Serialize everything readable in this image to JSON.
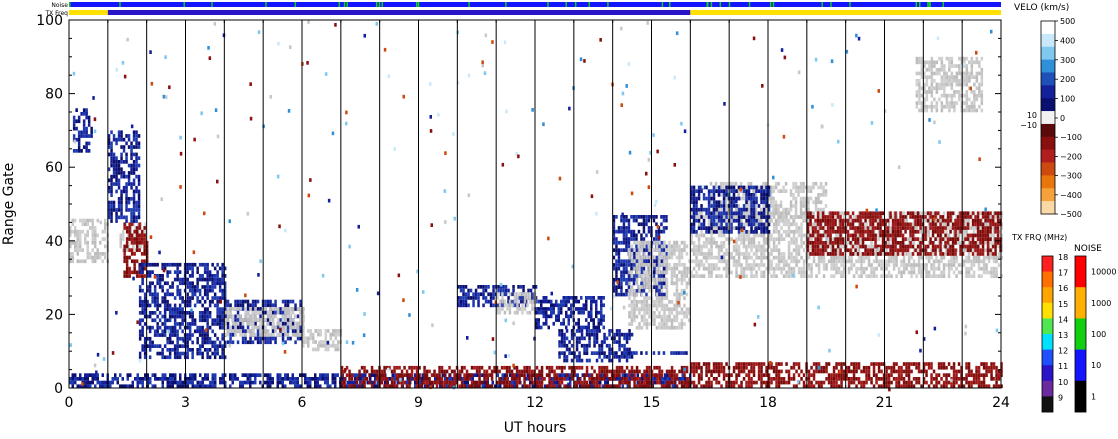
{
  "labels": {
    "noise_row": "Noise",
    "freq_row": "TX Freq",
    "x_axis": "UT hours",
    "y_axis": "Range Gate"
  },
  "velo_scale": {
    "title": "VELO (km/s)",
    "ticks": [
      "500",
      "400",
      "300",
      "200",
      "100",
      "0",
      "−100",
      "−200",
      "−300",
      "−400",
      "−500"
    ],
    "side_ticks": [
      "10",
      "−10"
    ],
    "colors": [
      "#ffffff",
      "#c9e8fb",
      "#7fc8f0",
      "#2f8fd8",
      "#1f4fb8",
      "#14209a",
      "#0b1070",
      "#f2f2f2",
      "#5a0a0a",
      "#8a0f0f",
      "#b01e1e",
      "#cc4a10",
      "#e8760c",
      "#f6a23a",
      "#fbd9a6"
    ]
  },
  "freq_scale": {
    "title": "TX FRQ (MHz)",
    "ticks": [
      "18",
      "17",
      "16",
      "15",
      "14",
      "13",
      "12",
      "11",
      "10",
      "9"
    ],
    "colors": [
      "#ff2020",
      "#ff7000",
      "#ffa500",
      "#ffe000",
      "#50e850",
      "#00e0ff",
      "#1e50ff",
      "#2a14c8",
      "#6a2aa0",
      "#111111"
    ]
  },
  "noise_scale": {
    "title": "NOISE",
    "ticks": [
      "10000",
      "1000",
      "100",
      "10",
      "1"
    ],
    "colors": [
      "#ff0000",
      "#ffb000",
      "#10d010",
      "#1414ff",
      "#000000"
    ]
  },
  "chart_data": {
    "type": "heatmap",
    "xlabel": "UT hours",
    "ylabel": "Range Gate",
    "xlim": [
      0,
      24
    ],
    "ylim": [
      0,
      100
    ],
    "xticks": [
      0,
      3,
      6,
      9,
      12,
      15,
      18,
      21,
      24
    ],
    "yticks": [
      0,
      20,
      40,
      60,
      80,
      100
    ],
    "scan_boundaries_ut": [
      1,
      2,
      3,
      4,
      5,
      6,
      7,
      8,
      9,
      10,
      11,
      12,
      13,
      14,
      15,
      16,
      17,
      18,
      19,
      20,
      21,
      22,
      23
    ],
    "tx_freq_row": [
      {
        "ut_start": 0,
        "ut_end": 1,
        "freq_mhz": 15
      },
      {
        "ut_start": 1,
        "ut_end": 16,
        "freq_mhz": 11
      },
      {
        "ut_start": 16,
        "ut_end": 24,
        "freq_mhz": 15
      }
    ],
    "noise_row_level": 10,
    "regions": [
      {
        "category": "ground-scatter",
        "ut_start": 0.0,
        "ut_end": 1.0,
        "gate_start": 34,
        "gate_end": 46
      },
      {
        "category": "ground-scatter",
        "ut_start": 1.3,
        "ut_end": 2.0,
        "gate_start": 37,
        "gate_end": 45
      },
      {
        "category": "velocity-negative",
        "ut_start": 1.4,
        "ut_end": 2.0,
        "gate_start": 30,
        "gate_end": 45
      },
      {
        "category": "velocity-positive",
        "ut_start": 1.0,
        "ut_end": 1.8,
        "gate_start": 45,
        "gate_end": 70
      },
      {
        "category": "velocity-positive",
        "ut_start": 0.1,
        "ut_end": 0.6,
        "gate_start": 64,
        "gate_end": 76
      },
      {
        "category": "velocity-positive",
        "ut_start": 1.8,
        "ut_end": 4.0,
        "gate_start": 8,
        "gate_end": 34
      },
      {
        "category": "velocity-positive",
        "ut_start": 4.0,
        "ut_end": 6.0,
        "gate_start": 12,
        "gate_end": 24
      },
      {
        "category": "ground-scatter",
        "ut_start": 4.0,
        "ut_end": 6.0,
        "gate_start": 14,
        "gate_end": 22
      },
      {
        "category": "ground-scatter",
        "ut_start": 6.0,
        "ut_end": 7.0,
        "gate_start": 10,
        "gate_end": 16
      },
      {
        "category": "velocity-positive",
        "ut_start": 0.0,
        "ut_end": 16.0,
        "gate_start": 0,
        "gate_end": 4
      },
      {
        "category": "velocity-negative",
        "ut_start": 7.0,
        "ut_end": 16.0,
        "gate_start": 0,
        "gate_end": 6
      },
      {
        "category": "velocity-negative",
        "ut_start": 16.0,
        "ut_end": 24.0,
        "gate_start": 0,
        "gate_end": 7
      },
      {
        "category": "velocity-positive",
        "ut_start": 10.0,
        "ut_end": 12.0,
        "gate_start": 22,
        "gate_end": 28
      },
      {
        "category": "ground-scatter",
        "ut_start": 11.0,
        "ut_end": 12.0,
        "gate_start": 20,
        "gate_end": 26
      },
      {
        "category": "velocity-positive",
        "ut_start": 12.0,
        "ut_end": 13.8,
        "gate_start": 16,
        "gate_end": 25
      },
      {
        "category": "velocity-positive",
        "ut_start": 12.6,
        "ut_end": 14.5,
        "gate_start": 7,
        "gate_end": 16
      },
      {
        "category": "velocity-positive",
        "ut_start": 14.0,
        "ut_end": 16.0,
        "gate_start": 9,
        "gate_end": 10
      },
      {
        "category": "velocity-positive",
        "ut_start": 14.0,
        "ut_end": 15.4,
        "gate_start": 25,
        "gate_end": 47
      },
      {
        "category": "ground-scatter",
        "ut_start": 14.4,
        "ut_end": 16.0,
        "gate_start": 16,
        "gate_end": 40
      },
      {
        "category": "ground-scatter",
        "ut_start": 16.0,
        "ut_end": 24.0,
        "gate_start": 30,
        "gate_end": 48
      },
      {
        "category": "ground-scatter",
        "ut_start": 16.5,
        "ut_end": 19.5,
        "gate_start": 45,
        "gate_end": 56
      },
      {
        "category": "ground-scatter",
        "ut_start": 21.8,
        "ut_end": 23.5,
        "gate_start": 75,
        "gate_end": 90
      },
      {
        "category": "velocity-positive",
        "ut_start": 16.0,
        "ut_end": 18.0,
        "gate_start": 42,
        "gate_end": 55
      },
      {
        "category": "velocity-negative",
        "ut_start": 19.0,
        "ut_end": 24.0,
        "gate_start": 36,
        "gate_end": 48
      }
    ]
  }
}
